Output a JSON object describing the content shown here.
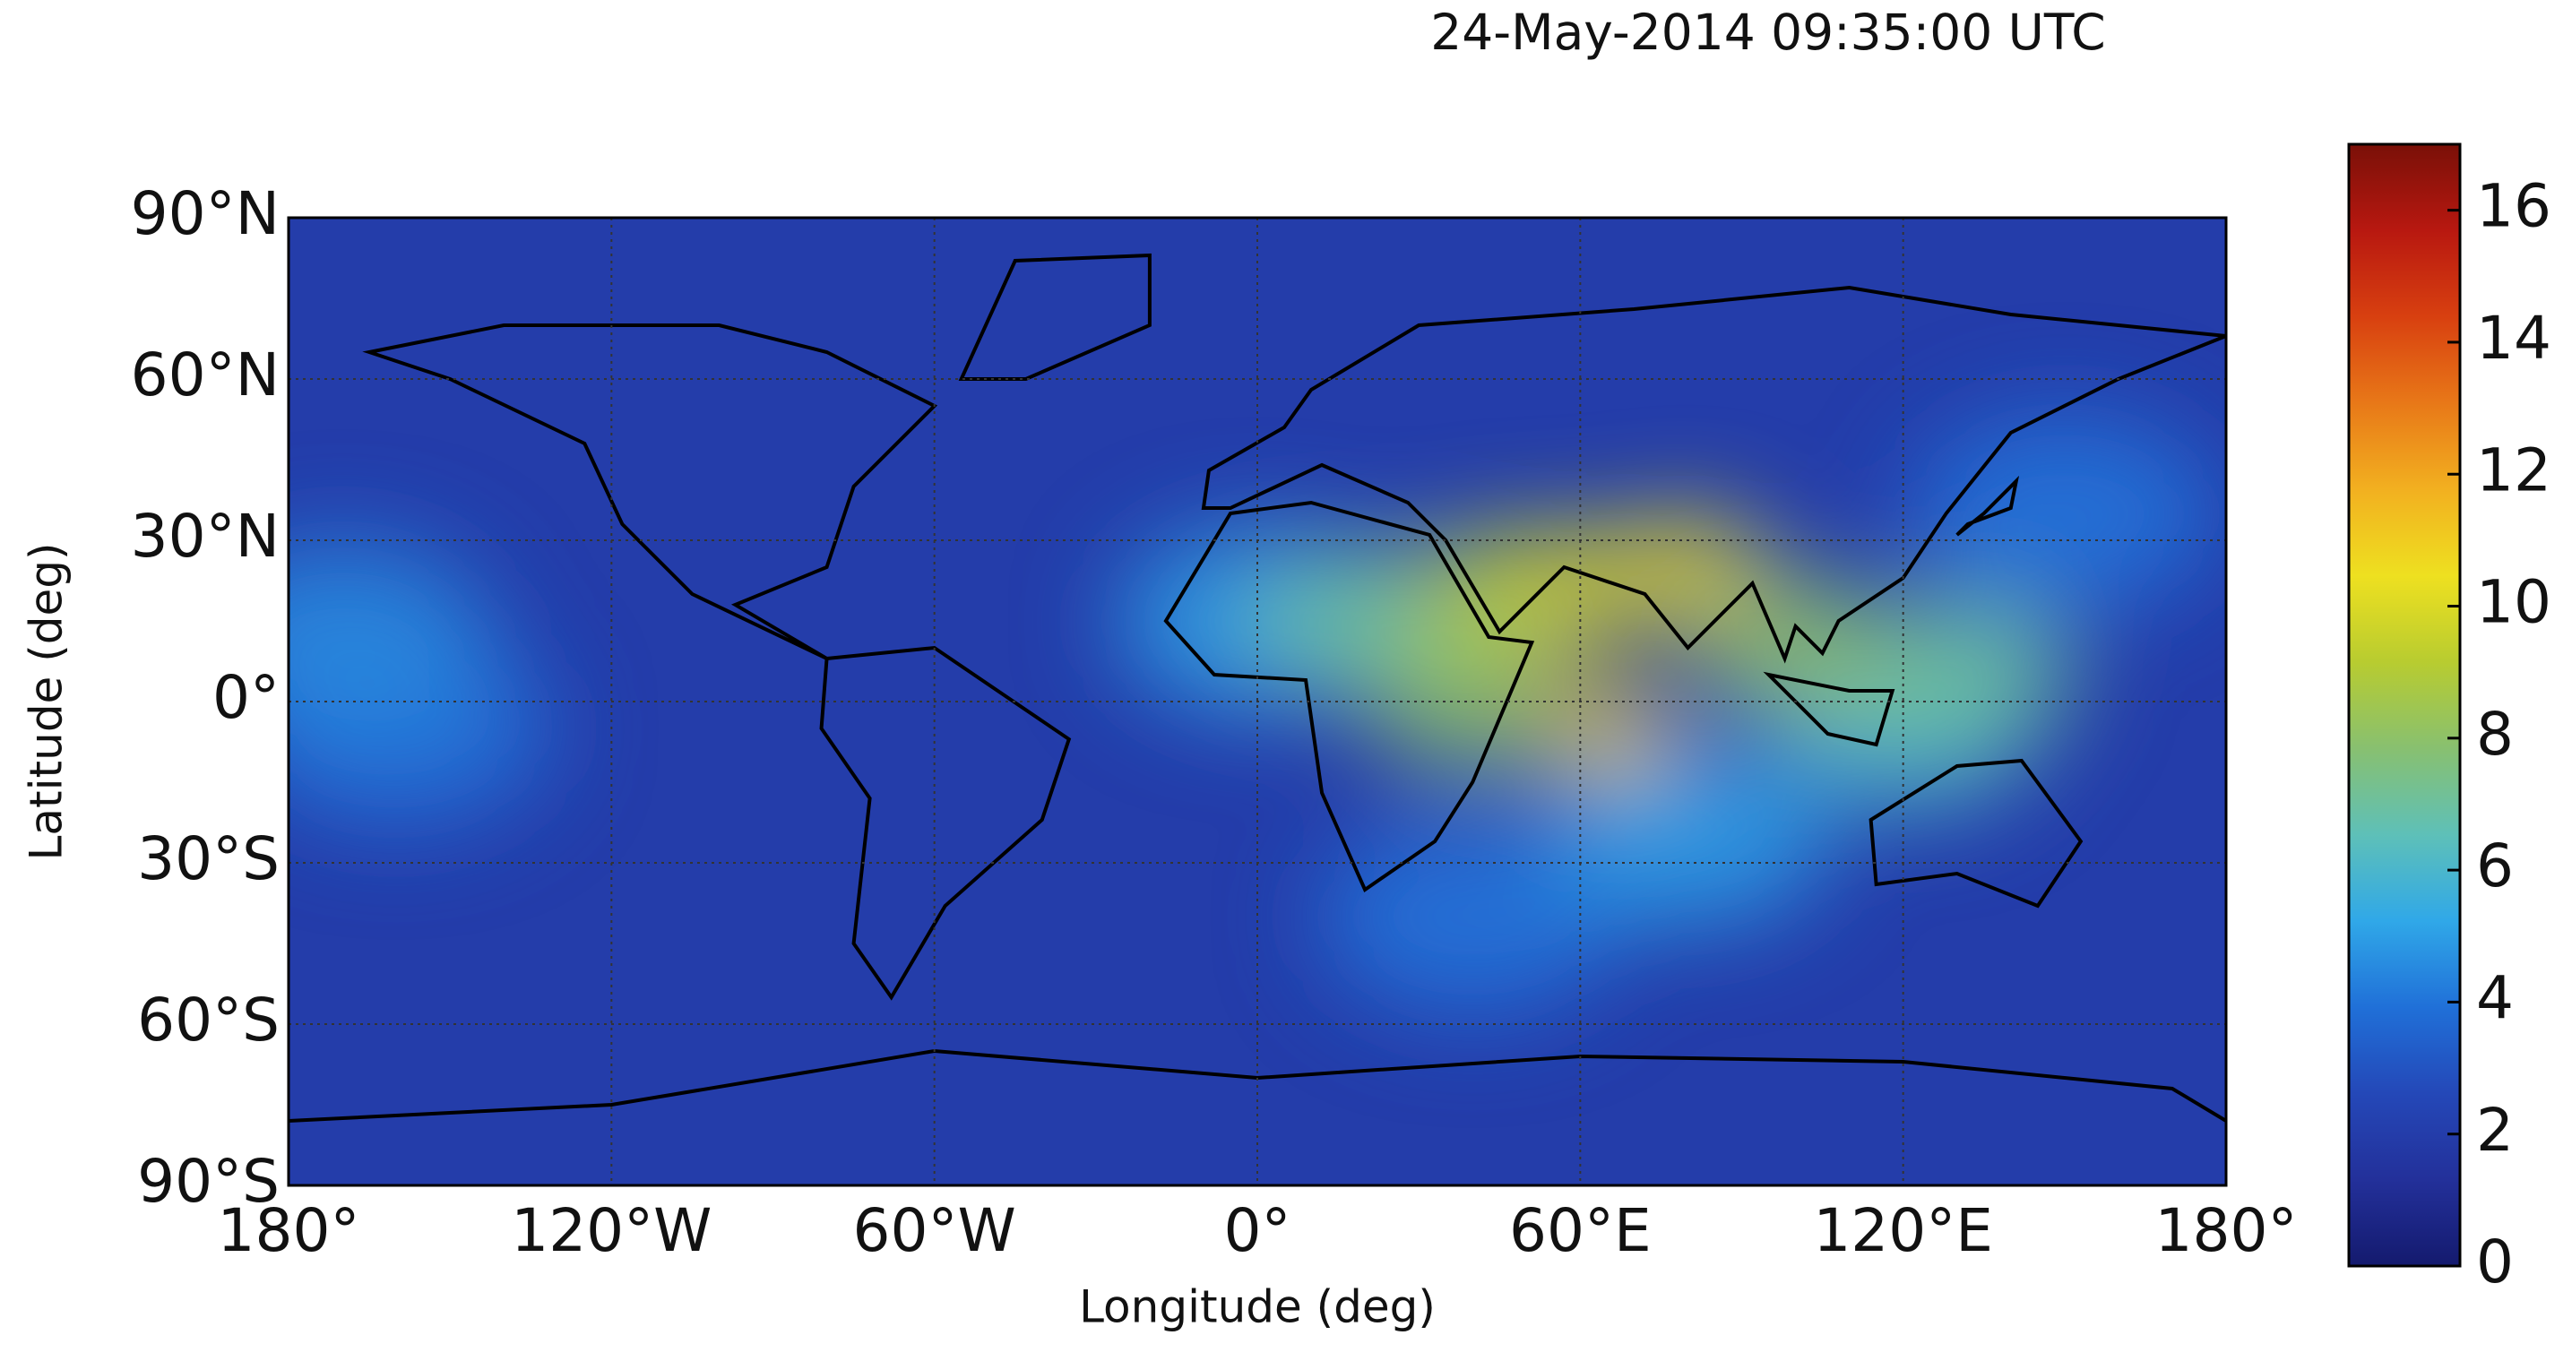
{
  "chart_data": {
    "type": "heatmap",
    "title": "24-May-2014 09:35:00 UTC",
    "xlabel": "Longitude (deg)",
    "ylabel": "Latitude (deg)",
    "xlim": [
      -180,
      180
    ],
    "xticks": [
      {
        "value": -180,
        "label": "180°"
      },
      {
        "value": -120,
        "label": "120°W"
      },
      {
        "value": -60,
        "label": "60°W"
      },
      {
        "value": 0,
        "label": "0°"
      },
      {
        "value": 60,
        "label": "60°E"
      },
      {
        "value": 120,
        "label": "120°E"
      },
      {
        "value": 180,
        "label": "180°"
      }
    ],
    "ylim": [
      -90,
      90
    ],
    "yticks": [
      {
        "value": -90,
        "label": "90°S"
      },
      {
        "value": -60,
        "label": "60°S"
      },
      {
        "value": -30,
        "label": "30°S"
      },
      {
        "value": 0,
        "label": "0°"
      },
      {
        "value": 30,
        "label": "30°N"
      },
      {
        "value": 60,
        "label": "60°N"
      },
      {
        "value": 90,
        "label": "90°N"
      }
    ],
    "grid": true,
    "clim": [
      0,
      17
    ],
    "cticks": [
      0,
      2,
      4,
      6,
      8,
      10,
      12,
      14,
      16
    ],
    "colormap": [
      "#141a6e",
      "#23309a",
      "#2448b8",
      "#2070d8",
      "#30a8e8",
      "#5ec0b8",
      "#88c070",
      "#b8cc30",
      "#eee020",
      "#f2b020",
      "#e87818",
      "#d84010",
      "#b81810",
      "#7a1008"
    ],
    "background_value": 2,
    "points": [
      {
        "lon": 40,
        "lat": -40,
        "value": 4
      },
      {
        "lon": 150,
        "lat": 35,
        "value": 4
      },
      {
        "lon": -160,
        "lat": -5,
        "value": 4
      },
      {
        "lon": -170,
        "lat": 12,
        "value": 4.5
      },
      {
        "lon": 80,
        "lat": -25,
        "value": 5
      },
      {
        "lon": 0,
        "lat": 15,
        "value": 5
      },
      {
        "lon": 120,
        "lat": -5,
        "value": 6
      },
      {
        "lon": 20,
        "lat": 15,
        "value": 7
      },
      {
        "lon": 130,
        "lat": 5,
        "value": 7
      },
      {
        "lon": 40,
        "lat": 0,
        "value": 8
      },
      {
        "lon": 100,
        "lat": 10,
        "value": 8
      },
      {
        "lon": 45,
        "lat": 20,
        "value": 9
      },
      {
        "lon": 60,
        "lat": 22,
        "value": 10
      },
      {
        "lon": 80,
        "lat": 25,
        "value": 10.5
      },
      {
        "lon": 65,
        "lat": -5,
        "value": 11
      }
    ]
  }
}
